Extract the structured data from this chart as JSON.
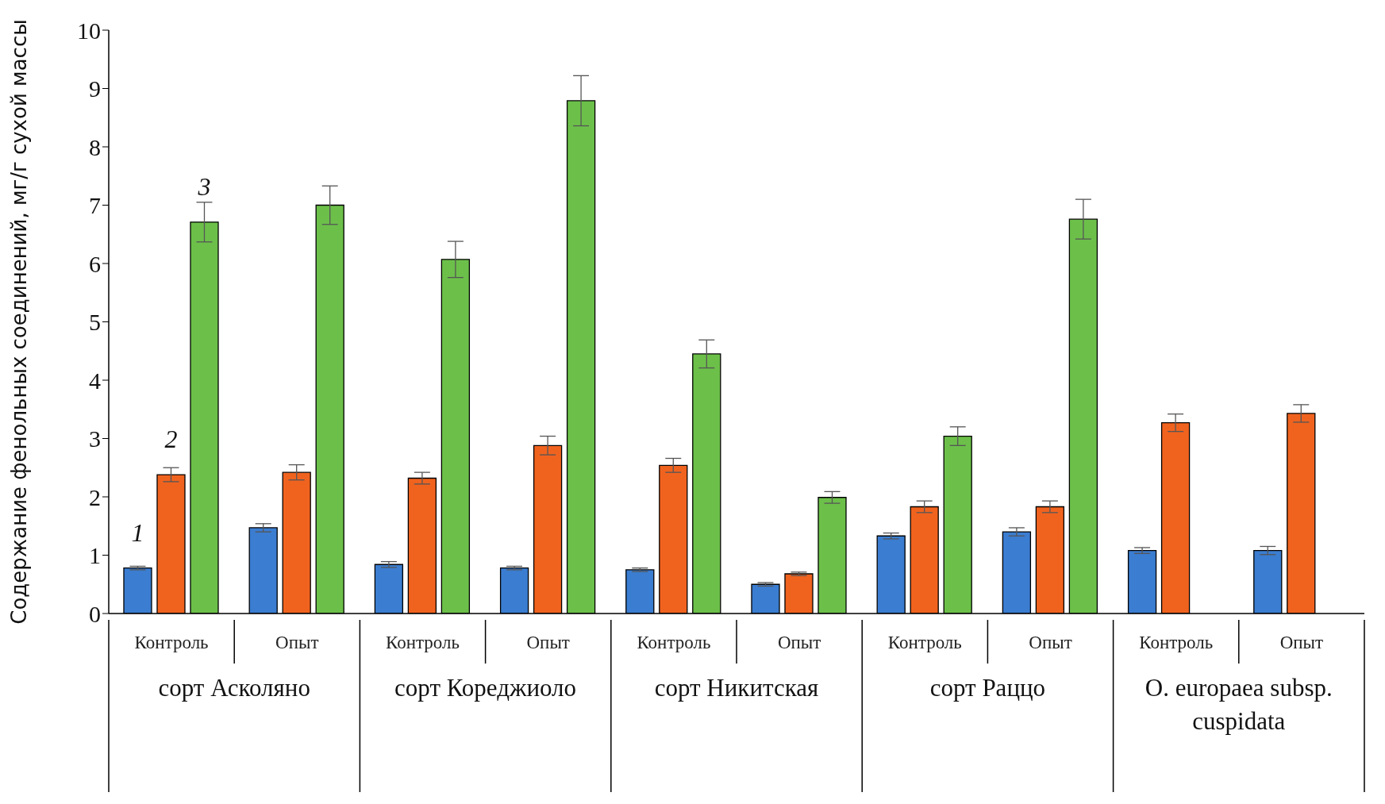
{
  "chart_data": {
    "type": "bar",
    "ylabel": "Содержание фенольных соединений, мг/г сухой массы",
    "categories": [
      "Контроль",
      "Опыт",
      "Контроль",
      "Опыт",
      "Контроль",
      "Опыт",
      "Контроль",
      "Опыт",
      "Контроль",
      "Опыт"
    ],
    "series": [
      {
        "color": "#3b7dd0",
        "values": [
          0.78,
          1.47,
          0.84,
          0.78,
          0.75,
          0.5,
          1.33,
          1.4,
          1.08,
          1.08
        ],
        "errors": [
          0.03,
          0.07,
          0.05,
          0.03,
          0.03,
          0.03,
          0.05,
          0.07,
          0.05,
          0.07
        ]
      },
      {
        "color": "#f0631f",
        "values": [
          2.38,
          2.42,
          2.32,
          2.88,
          2.54,
          0.68,
          1.83,
          1.83,
          3.27,
          3.43
        ],
        "errors": [
          0.12,
          0.13,
          0.1,
          0.16,
          0.12,
          0.03,
          0.1,
          0.1,
          0.15,
          0.15
        ]
      },
      {
        "color": "#6cc04a",
        "values": [
          6.71,
          7.0,
          6.07,
          8.79,
          4.45,
          1.99,
          3.04,
          6.76,
          null,
          null
        ],
        "errors": [
          0.34,
          0.33,
          0.31,
          0.43,
          0.24,
          0.1,
          0.16,
          0.34,
          null,
          null
        ]
      }
    ],
    "ylim": [
      0,
      10
    ],
    "yticks": [
      0,
      1,
      2,
      3,
      4,
      5,
      6,
      7,
      8,
      9,
      10
    ],
    "grid": false,
    "legend": false,
    "annotations": [
      "1",
      "2",
      "3",
      "сорт Асколяно",
      "сорт Кореджиоло",
      "сорт Никитская",
      "сорт Раццо",
      "O. europaea subsp. cuspidata"
    ]
  }
}
